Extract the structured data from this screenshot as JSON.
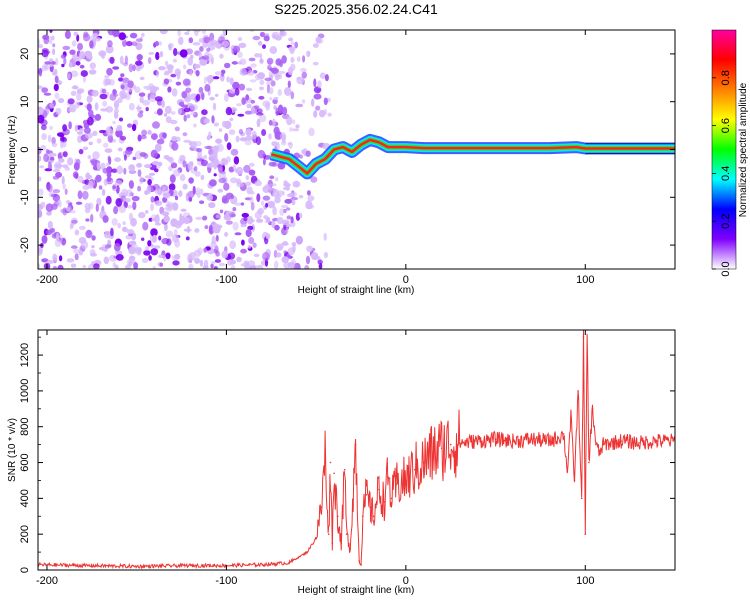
{
  "title": "S225.2025.356.02.24.C41",
  "chart_data": [
    {
      "type": "heatmap",
      "xlabel": "Height of straight line (km)",
      "ylabel": "Frequency (Hz)",
      "xlim": [
        -205,
        150
      ],
      "ylim": [
        -25,
        25
      ],
      "x_ticks": [
        {
          "value": -200,
          "label": "-200"
        },
        {
          "value": -100,
          "label": "-100"
        },
        {
          "value": 0,
          "label": "0"
        },
        {
          "value": 100,
          "label": "100"
        }
      ],
      "y_ticks": [
        {
          "value": -20,
          "label": "-20"
        },
        {
          "value": -10,
          "label": "-10"
        },
        {
          "value": 0,
          "label": "0"
        },
        {
          "value": 10,
          "label": "10"
        },
        {
          "value": 20,
          "label": "20"
        }
      ],
      "noise_region_x": [
        -205,
        -62
      ],
      "ridge": [
        {
          "x": -75,
          "f": -1.0
        },
        {
          "x": -65,
          "f": -2.0
        },
        {
          "x": -60,
          "f": -3.5
        },
        {
          "x": -55,
          "f": -5.0
        },
        {
          "x": -50,
          "f": -3.0
        },
        {
          "x": -45,
          "f": -2.0
        },
        {
          "x": -40,
          "f": 0.0
        },
        {
          "x": -35,
          "f": 0.5
        },
        {
          "x": -30,
          "f": -0.5
        },
        {
          "x": -25,
          "f": 1.0
        },
        {
          "x": -20,
          "f": 2.0
        },
        {
          "x": -15,
          "f": 1.5
        },
        {
          "x": -10,
          "f": 0.5
        },
        {
          "x": 0,
          "f": 0.5
        },
        {
          "x": 10,
          "f": 0.3
        },
        {
          "x": 40,
          "f": 0.3
        },
        {
          "x": 80,
          "f": 0.3
        },
        {
          "x": 95,
          "f": 0.5
        },
        {
          "x": 100,
          "f": 0.2
        },
        {
          "x": 150,
          "f": 0.2
        }
      ],
      "colorbar": {
        "label": "Normalized spectral amplitude",
        "range": [
          0,
          1
        ],
        "ticks": [
          {
            "value": 0.0,
            "label": "0.0"
          },
          {
            "value": 0.2,
            "label": "0.2"
          },
          {
            "value": 0.4,
            "label": "0.4"
          },
          {
            "value": 0.6,
            "label": "0.6"
          },
          {
            "value": 0.8,
            "label": "0.8"
          }
        ],
        "colors": [
          "#ffffff",
          "#8000ff",
          "#0000ff",
          "#00ffff",
          "#00ff00",
          "#ffff00",
          "#ff8000",
          "#ff0000",
          "#ff00a0"
        ]
      }
    },
    {
      "type": "line",
      "xlabel": "Height of straight line (km)",
      "ylabel": "SNR (10 * v/v)",
      "xlim": [
        -205,
        150
      ],
      "ylim": [
        0,
        1340
      ],
      "color": "#ee3333",
      "x_ticks": [
        {
          "value": -200,
          "label": "-200"
        },
        {
          "value": -100,
          "label": "-100"
        },
        {
          "value": 0,
          "label": "0"
        },
        {
          "value": 100,
          "label": "100"
        }
      ],
      "y_ticks": [
        {
          "value": 0,
          "label": "0"
        },
        {
          "value": 200,
          "label": "200"
        },
        {
          "value": 400,
          "label": "400"
        },
        {
          "value": 600,
          "label": "600"
        },
        {
          "value": 800,
          "label": "800"
        },
        {
          "value": 1000,
          "label": "1000"
        },
        {
          "value": 1200,
          "label": "1200"
        }
      ],
      "series": [
        {
          "name": "SNR",
          "x": [
            -205,
            -180,
            -150,
            -120,
            -100,
            -80,
            -65,
            -55,
            -50,
            -47,
            -45,
            -43,
            -42,
            -41,
            -40,
            -38,
            -36,
            -34,
            -33,
            -31,
            -28,
            -26,
            -25,
            -24,
            -22,
            -20,
            -18,
            -15,
            -12,
            -10,
            -8,
            -5,
            0,
            5,
            10,
            15,
            20,
            25,
            30,
            40,
            50,
            60,
            70,
            80,
            85,
            88,
            90,
            92,
            94,
            96,
            98,
            99,
            100,
            101,
            102,
            104,
            106,
            108,
            110,
            120,
            130,
            140,
            150
          ],
          "y": [
            30,
            25,
            20,
            25,
            25,
            30,
            40,
            100,
            180,
            350,
            650,
            200,
            600,
            150,
            540,
            300,
            150,
            560,
            200,
            120,
            700,
            50,
            30,
            300,
            420,
            350,
            300,
            450,
            380,
            520,
            400,
            480,
            500,
            560,
            600,
            650,
            680,
            700,
            710,
            720,
            730,
            720,
            730,
            720,
            740,
            760,
            550,
            850,
            500,
            1000,
            400,
            1300,
            200,
            1340,
            600,
            900,
            700,
            650,
            700,
            720,
            710,
            720,
            720
          ]
        }
      ]
    }
  ]
}
